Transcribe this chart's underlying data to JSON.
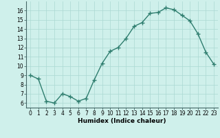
{
  "x": [
    0,
    1,
    2,
    3,
    4,
    5,
    6,
    7,
    8,
    9,
    10,
    11,
    12,
    13,
    14,
    15,
    16,
    17,
    18,
    19,
    20,
    21,
    22,
    23
  ],
  "y": [
    9.0,
    8.6,
    6.2,
    6.0,
    7.0,
    6.7,
    6.2,
    6.5,
    8.5,
    10.3,
    11.6,
    12.0,
    13.0,
    14.3,
    14.7,
    15.7,
    15.8,
    16.3,
    16.1,
    15.5,
    14.9,
    13.5,
    11.5,
    10.2
  ],
  "line_color": "#2e7d6e",
  "marker": "+",
  "markersize": 4,
  "markeredgewidth": 1.0,
  "linewidth": 1.0,
  "bg_color": "#cff0eb",
  "grid_color": "#aad8d2",
  "xlabel": "Humidex (Indice chaleur)",
  "ylabel": "",
  "xlim": [
    -0.5,
    23.5
  ],
  "ylim": [
    5.5,
    17.0
  ],
  "yticks": [
    6,
    7,
    8,
    9,
    10,
    11,
    12,
    13,
    14,
    15,
    16
  ],
  "xticks": [
    0,
    1,
    2,
    3,
    4,
    5,
    6,
    7,
    8,
    9,
    10,
    11,
    12,
    13,
    14,
    15,
    16,
    17,
    18,
    19,
    20,
    21,
    22,
    23
  ],
  "xtick_labels": [
    "0",
    "1",
    "2",
    "3",
    "4",
    "5",
    "6",
    "7",
    "8",
    "9",
    "10",
    "11",
    "12",
    "13",
    "14",
    "15",
    "16",
    "17",
    "18",
    "19",
    "20",
    "21",
    "22",
    "23"
  ],
  "label_fontsize": 6.5,
  "tick_fontsize": 5.5
}
